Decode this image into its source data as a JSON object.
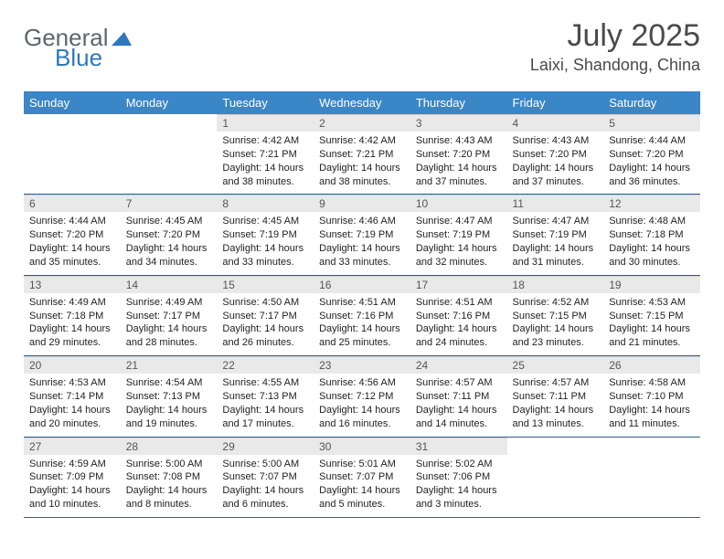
{
  "logo": {
    "part1": "General",
    "part2": "Blue"
  },
  "title": "July 2025",
  "location": "Laixi, Shandong, China",
  "colors": {
    "header_bg": "#3b86c6",
    "header_text": "#ffffff",
    "daynum_bg": "#e9e9e9",
    "row_border": "#2d5f8e",
    "logo_blue": "#2f78bb",
    "logo_gray": "#5d6770"
  },
  "weekdays": [
    "Sunday",
    "Monday",
    "Tuesday",
    "Wednesday",
    "Thursday",
    "Friday",
    "Saturday"
  ],
  "weeks": [
    [
      null,
      null,
      {
        "n": "1",
        "sr": "4:42 AM",
        "ss": "7:21 PM",
        "dl": "14 hours and 38 minutes."
      },
      {
        "n": "2",
        "sr": "4:42 AM",
        "ss": "7:21 PM",
        "dl": "14 hours and 38 minutes."
      },
      {
        "n": "3",
        "sr": "4:43 AM",
        "ss": "7:20 PM",
        "dl": "14 hours and 37 minutes."
      },
      {
        "n": "4",
        "sr": "4:43 AM",
        "ss": "7:20 PM",
        "dl": "14 hours and 37 minutes."
      },
      {
        "n": "5",
        "sr": "4:44 AM",
        "ss": "7:20 PM",
        "dl": "14 hours and 36 minutes."
      }
    ],
    [
      {
        "n": "6",
        "sr": "4:44 AM",
        "ss": "7:20 PM",
        "dl": "14 hours and 35 minutes."
      },
      {
        "n": "7",
        "sr": "4:45 AM",
        "ss": "7:20 PM",
        "dl": "14 hours and 34 minutes."
      },
      {
        "n": "8",
        "sr": "4:45 AM",
        "ss": "7:19 PM",
        "dl": "14 hours and 33 minutes."
      },
      {
        "n": "9",
        "sr": "4:46 AM",
        "ss": "7:19 PM",
        "dl": "14 hours and 33 minutes."
      },
      {
        "n": "10",
        "sr": "4:47 AM",
        "ss": "7:19 PM",
        "dl": "14 hours and 32 minutes."
      },
      {
        "n": "11",
        "sr": "4:47 AM",
        "ss": "7:19 PM",
        "dl": "14 hours and 31 minutes."
      },
      {
        "n": "12",
        "sr": "4:48 AM",
        "ss": "7:18 PM",
        "dl": "14 hours and 30 minutes."
      }
    ],
    [
      {
        "n": "13",
        "sr": "4:49 AM",
        "ss": "7:18 PM",
        "dl": "14 hours and 29 minutes."
      },
      {
        "n": "14",
        "sr": "4:49 AM",
        "ss": "7:17 PM",
        "dl": "14 hours and 28 minutes."
      },
      {
        "n": "15",
        "sr": "4:50 AM",
        "ss": "7:17 PM",
        "dl": "14 hours and 26 minutes."
      },
      {
        "n": "16",
        "sr": "4:51 AM",
        "ss": "7:16 PM",
        "dl": "14 hours and 25 minutes."
      },
      {
        "n": "17",
        "sr": "4:51 AM",
        "ss": "7:16 PM",
        "dl": "14 hours and 24 minutes."
      },
      {
        "n": "18",
        "sr": "4:52 AM",
        "ss": "7:15 PM",
        "dl": "14 hours and 23 minutes."
      },
      {
        "n": "19",
        "sr": "4:53 AM",
        "ss": "7:15 PM",
        "dl": "14 hours and 21 minutes."
      }
    ],
    [
      {
        "n": "20",
        "sr": "4:53 AM",
        "ss": "7:14 PM",
        "dl": "14 hours and 20 minutes."
      },
      {
        "n": "21",
        "sr": "4:54 AM",
        "ss": "7:13 PM",
        "dl": "14 hours and 19 minutes."
      },
      {
        "n": "22",
        "sr": "4:55 AM",
        "ss": "7:13 PM",
        "dl": "14 hours and 17 minutes."
      },
      {
        "n": "23",
        "sr": "4:56 AM",
        "ss": "7:12 PM",
        "dl": "14 hours and 16 minutes."
      },
      {
        "n": "24",
        "sr": "4:57 AM",
        "ss": "7:11 PM",
        "dl": "14 hours and 14 minutes."
      },
      {
        "n": "25",
        "sr": "4:57 AM",
        "ss": "7:11 PM",
        "dl": "14 hours and 13 minutes."
      },
      {
        "n": "26",
        "sr": "4:58 AM",
        "ss": "7:10 PM",
        "dl": "14 hours and 11 minutes."
      }
    ],
    [
      {
        "n": "27",
        "sr": "4:59 AM",
        "ss": "7:09 PM",
        "dl": "14 hours and 10 minutes."
      },
      {
        "n": "28",
        "sr": "5:00 AM",
        "ss": "7:08 PM",
        "dl": "14 hours and 8 minutes."
      },
      {
        "n": "29",
        "sr": "5:00 AM",
        "ss": "7:07 PM",
        "dl": "14 hours and 6 minutes."
      },
      {
        "n": "30",
        "sr": "5:01 AM",
        "ss": "7:07 PM",
        "dl": "14 hours and 5 minutes."
      },
      {
        "n": "31",
        "sr": "5:02 AM",
        "ss": "7:06 PM",
        "dl": "14 hours and 3 minutes."
      },
      null,
      null
    ]
  ],
  "labels": {
    "sunrise": "Sunrise: ",
    "sunset": "Sunset: ",
    "daylight": "Daylight: "
  }
}
